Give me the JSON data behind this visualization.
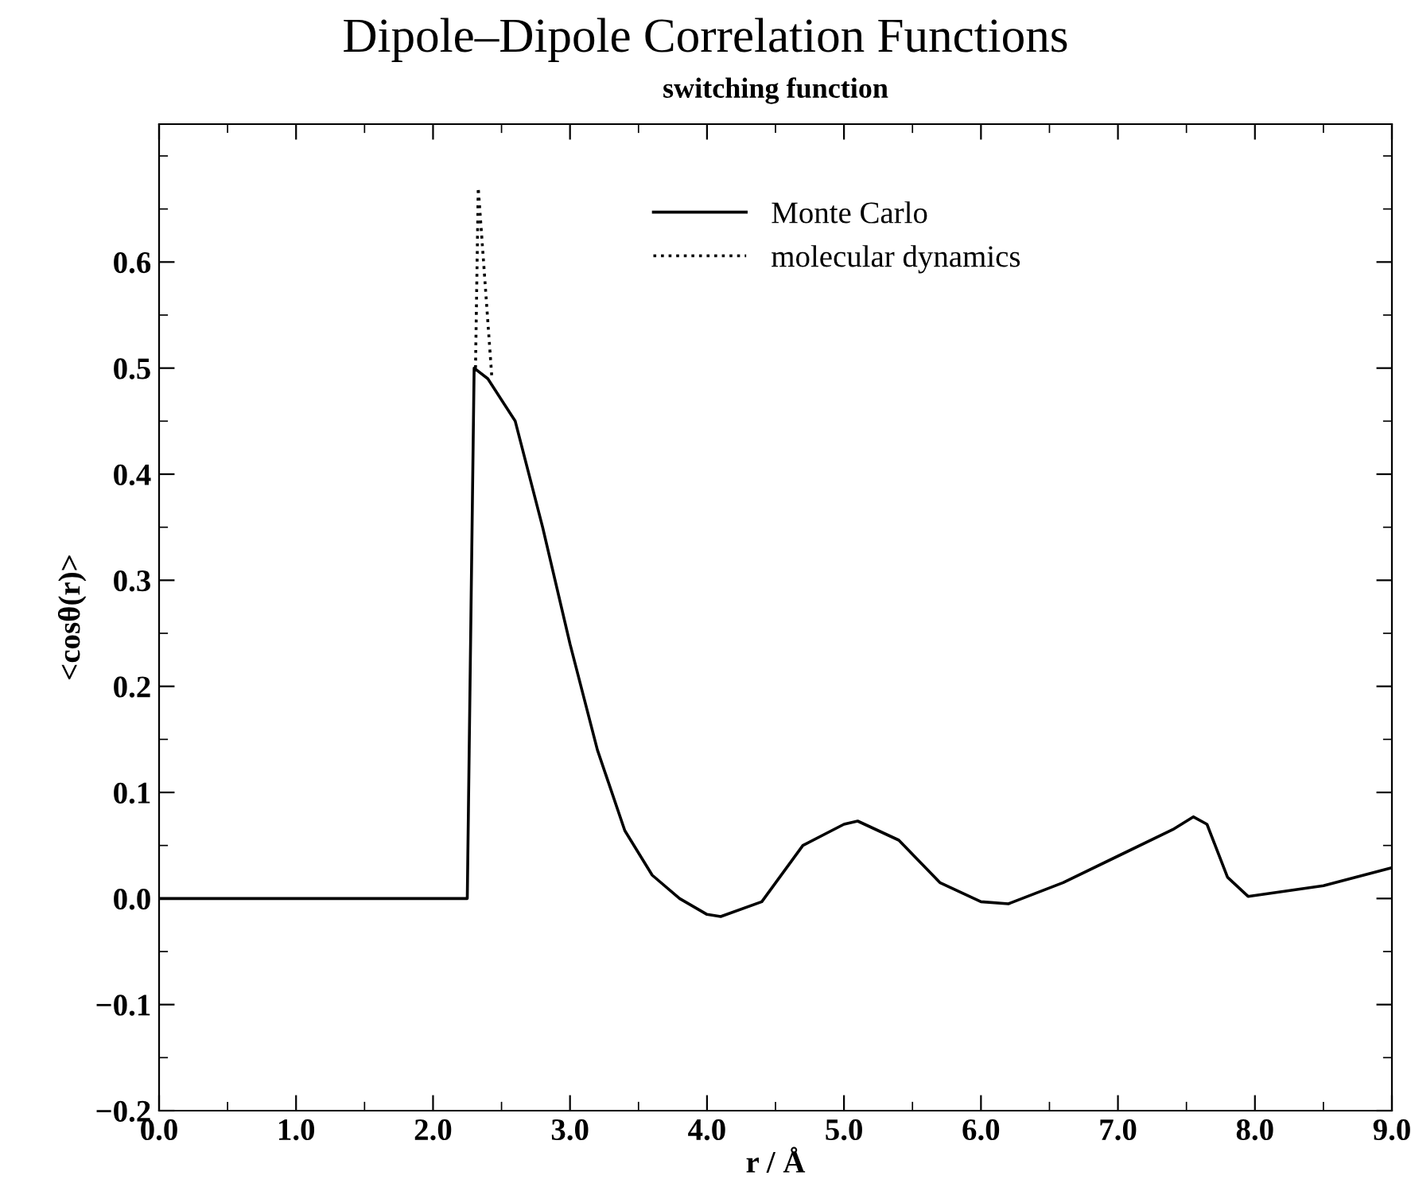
{
  "chart_data": {
    "type": "line",
    "title": "Dipole–Dipole Correlation Functions",
    "subtitle": "switching function",
    "xlabel": "r / Å",
    "ylabel": "<cosθ(r)>",
    "xlim": [
      0,
      9
    ],
    "ylim": [
      -0.2,
      0.73
    ],
    "xticks": [
      {
        "value": 0,
        "label": "0.0"
      },
      {
        "value": 1,
        "label": "1.0"
      },
      {
        "value": 2,
        "label": "2.0"
      },
      {
        "value": 3,
        "label": "3.0"
      },
      {
        "value": 4,
        "label": "4.0"
      },
      {
        "value": 5,
        "label": "5.0"
      },
      {
        "value": 6,
        "label": "6.0"
      },
      {
        "value": 7,
        "label": "7.0"
      },
      {
        "value": 8,
        "label": "8.0"
      },
      {
        "value": 9,
        "label": "9.0"
      }
    ],
    "yticks": [
      {
        "value": -0.2,
        "label": "−0.2"
      },
      {
        "value": -0.1,
        "label": "−0.1"
      },
      {
        "value": 0,
        "label": "0.0"
      },
      {
        "value": 0.1,
        "label": "0.1"
      },
      {
        "value": 0.2,
        "label": "0.2"
      },
      {
        "value": 0.3,
        "label": "0.3"
      },
      {
        "value": 0.4,
        "label": "0.4"
      },
      {
        "value": 0.5,
        "label": "0.5"
      },
      {
        "value": 0.6,
        "label": "0.6"
      }
    ],
    "legend": "top right",
    "grid": false,
    "series": [
      {
        "name": "Monte Carlo",
        "color": "#000000",
        "line_style": "solid",
        "x": [
          0,
          2.25,
          2.3,
          2.4,
          2.6,
          2.8,
          3.0,
          3.2,
          3.4,
          3.6,
          3.8,
          4.0,
          4.1,
          4.4,
          4.7,
          5.0,
          5.1,
          5.4,
          5.7,
          6.0,
          6.2,
          6.6,
          7.0,
          7.4,
          7.55,
          7.65,
          7.8,
          7.95,
          8.5,
          9.0
        ],
        "values": [
          0,
          0,
          0.5,
          0.49,
          0.45,
          0.35,
          0.24,
          0.14,
          0.064,
          0.022,
          0.0,
          -0.015,
          -0.017,
          -0.003,
          0.05,
          0.07,
          0.073,
          0.055,
          0.015,
          -0.003,
          -0.005,
          0.015,
          0.04,
          0.065,
          0.077,
          0.07,
          0.02,
          0.002,
          0.012,
          0.029
        ]
      },
      {
        "name": "molecular dynamics",
        "color": "#000000",
        "line_style": "dotted",
        "x": [
          2.31,
          2.33,
          2.43
        ],
        "values": [
          0.5,
          0.67,
          0.49
        ]
      }
    ]
  }
}
